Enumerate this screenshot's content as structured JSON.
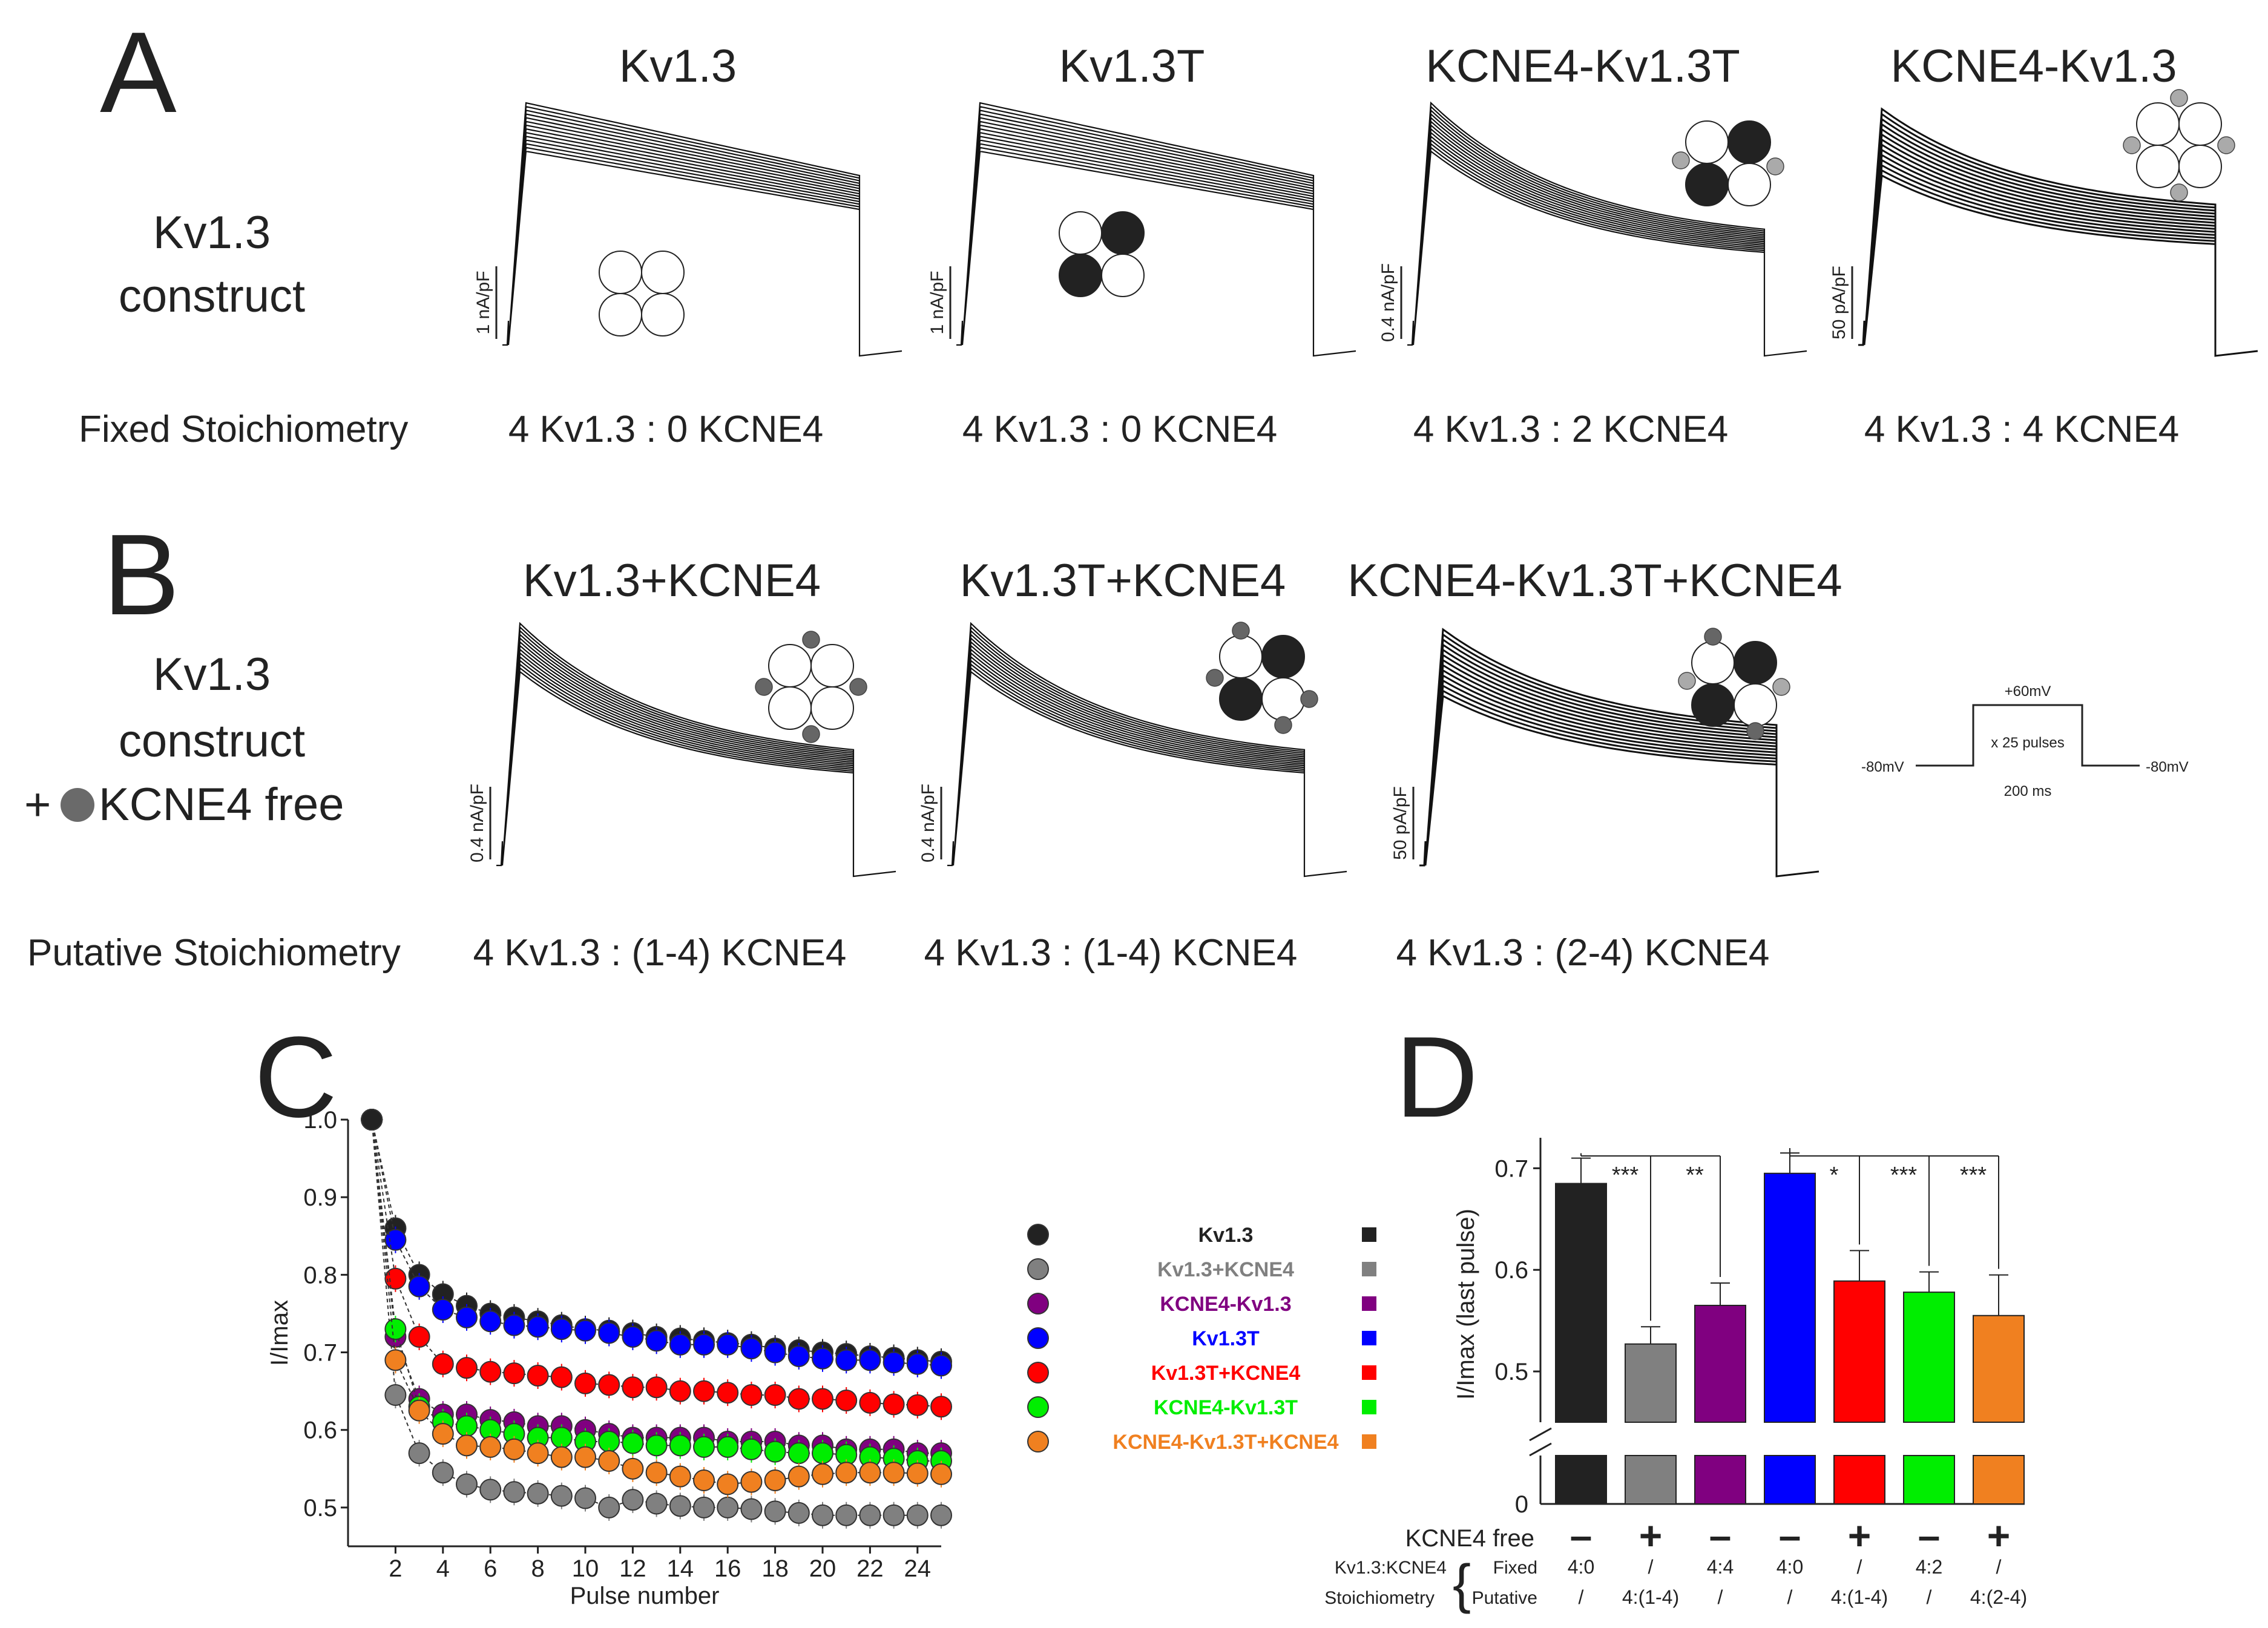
{
  "colors": {
    "Kv1.3": "#222222",
    "Kv1.3+KCNE4": "#808080",
    "KCNE4-Kv1.3": "#800080",
    "Kv1.3T": "#0000ff",
    "Kv1.3T+KCNE4": "#ff0000",
    "KCNE4-Kv1.3T": "#00ee00",
    "KCNE4-Kv1.3T+KCNE4": "#f08020"
  },
  "panelA": {
    "letter": "A",
    "row_label": [
      "Kv1.3",
      "construct"
    ],
    "stoich_label": "Fixed Stoichiometry",
    "traces": [
      {
        "title": "Kv1.3",
        "scale": "1 nA/pF",
        "stoich": "4 Kv1.3 : 0 KCNE4",
        "icon": "tetramer"
      },
      {
        "title": "Kv1.3T",
        "scale": "1 nA/pF",
        "stoich": "4 Kv1.3 : 0 KCNE4",
        "icon": "tandem"
      },
      {
        "title": "KCNE4-Kv1.3T",
        "scale": "0.4 nA/pF",
        "stoich": "4 Kv1.3 : 2 KCNE4",
        "icon": "tandem-2e4"
      },
      {
        "title": "KCNE4-Kv1.3",
        "scale": "50 pA/pF",
        "stoich": "4 Kv1.3 : 4 KCNE4",
        "icon": "tetramer-4e4"
      }
    ]
  },
  "panelB": {
    "letter": "B",
    "row_label": [
      "Kv1.3",
      "construct",
      "+",
      "KCNE4 free"
    ],
    "stoich_label": "Putative Stoichiometry",
    "traces": [
      {
        "title": "Kv1.3+KCNE4",
        "scale": "0.4 nA/pF",
        "stoich": "4 Kv1.3 : (1-4) KCNE4",
        "icon": "tetramer-free"
      },
      {
        "title": "Kv1.3T+KCNE4",
        "scale": "0.4 nA/pF",
        "stoich": "4 Kv1.3 : (1-4) KCNE4",
        "icon": "tandem-free"
      },
      {
        "title": "KCNE4-Kv1.3T+KCNE4",
        "scale": "50 pA/pF",
        "stoich": "4 Kv1.3 : (2-4) KCNE4",
        "icon": "tandem-2e4-free"
      }
    ],
    "protocol": {
      "high": "+60mV",
      "hold_left": "-80mV",
      "hold_right": "-80mV",
      "pulses": "x 25 pulses",
      "duration": "200 ms"
    }
  },
  "chart_data": [
    {
      "panel": "C",
      "type": "scatter",
      "xlabel": "Pulse number",
      "ylabel": "I/Imax",
      "xlim": [
        0,
        25
      ],
      "ylim": [
        0.45,
        1.0
      ],
      "x_ticks": [
        2,
        4,
        6,
        8,
        10,
        12,
        14,
        16,
        18,
        20,
        22,
        24
      ],
      "y_ticks": [
        0.5,
        0.6,
        0.7,
        0.8,
        0.9,
        1.0
      ],
      "legend_position": "right",
      "x": [
        1,
        2,
        3,
        4,
        5,
        6,
        7,
        8,
        9,
        10,
        11,
        12,
        13,
        14,
        15,
        16,
        17,
        18,
        19,
        20,
        21,
        22,
        23,
        24,
        25
      ],
      "series": [
        {
          "name": "Kv1.3",
          "color": "#222222",
          "values": [
            1.0,
            0.86,
            0.8,
            0.775,
            0.76,
            0.75,
            0.745,
            0.74,
            0.735,
            0.73,
            0.728,
            0.725,
            0.72,
            0.718,
            0.715,
            0.712,
            0.71,
            0.705,
            0.703,
            0.7,
            0.698,
            0.695,
            0.693,
            0.69,
            0.688
          ]
        },
        {
          "name": "Kv1.3+KCNE4",
          "color": "#808080",
          "values": [
            1.0,
            0.645,
            0.57,
            0.545,
            0.53,
            0.523,
            0.52,
            0.518,
            0.515,
            0.512,
            0.5,
            0.51,
            0.505,
            0.502,
            0.5,
            0.5,
            0.498,
            0.495,
            0.493,
            0.49,
            0.49,
            0.49,
            0.49,
            0.49,
            0.49
          ]
        },
        {
          "name": "KCNE4-Kv1.3",
          "color": "#800080",
          "values": [
            1.0,
            0.72,
            0.64,
            0.62,
            0.62,
            0.613,
            0.61,
            0.605,
            0.605,
            0.6,
            0.595,
            0.59,
            0.59,
            0.59,
            0.59,
            0.585,
            0.585,
            0.585,
            0.58,
            0.58,
            0.575,
            0.575,
            0.575,
            0.57,
            0.57
          ]
        },
        {
          "name": "Kv1.3T",
          "color": "#0000ff",
          "values": [
            1.0,
            0.845,
            0.785,
            0.755,
            0.745,
            0.74,
            0.735,
            0.733,
            0.73,
            0.728,
            0.725,
            0.72,
            0.715,
            0.71,
            0.71,
            0.71,
            0.705,
            0.7,
            0.695,
            0.692,
            0.69,
            0.69,
            0.687,
            0.685,
            0.683
          ]
        },
        {
          "name": "Kv1.3T+KCNE4",
          "color": "#ff0000",
          "values": [
            1.0,
            0.795,
            0.72,
            0.685,
            0.68,
            0.675,
            0.673,
            0.67,
            0.668,
            0.66,
            0.658,
            0.655,
            0.655,
            0.65,
            0.65,
            0.648,
            0.645,
            0.645,
            0.64,
            0.64,
            0.638,
            0.635,
            0.633,
            0.632,
            0.63
          ]
        },
        {
          "name": "KCNE4-Kv1.3T",
          "color": "#00ee00",
          "values": [
            1.0,
            0.73,
            0.63,
            0.61,
            0.605,
            0.6,
            0.595,
            0.59,
            0.59,
            0.585,
            0.585,
            0.583,
            0.58,
            0.58,
            0.578,
            0.578,
            0.575,
            0.572,
            0.57,
            0.57,
            0.568,
            0.565,
            0.563,
            0.56,
            0.56
          ]
        },
        {
          "name": "KCNE4-Kv1.3T+KCNE4",
          "color": "#f08020",
          "values": [
            1.0,
            0.69,
            0.625,
            0.595,
            0.58,
            0.578,
            0.575,
            0.57,
            0.565,
            0.565,
            0.56,
            0.55,
            0.545,
            0.54,
            0.535,
            0.53,
            0.533,
            0.535,
            0.54,
            0.543,
            0.545,
            0.545,
            0.545,
            0.544,
            0.543
          ]
        }
      ]
    },
    {
      "panel": "D",
      "type": "bar",
      "ylabel": "I/Imax (last pulse)",
      "ylim": [
        0.45,
        0.73
      ],
      "y_ticks": [
        0.5,
        0.6,
        0.7
      ],
      "y_zero_label": "0",
      "categories": [
        "Kv1.3",
        "Kv1.3+KCNE4",
        "KCNE4-Kv1.3",
        "Kv1.3T",
        "Kv1.3T+KCNE4",
        "KCNE4-Kv1.3T",
        "KCNE4-Kv1.3T+KCNE4"
      ],
      "values": [
        0.685,
        0.527,
        0.565,
        0.695,
        0.589,
        0.578,
        0.555
      ],
      "errors": [
        0.025,
        0.017,
        0.022,
        0.02,
        0.03,
        0.02,
        0.04
      ],
      "significance": [
        {
          "from": 0,
          "to": 1,
          "label": "***"
        },
        {
          "from": 0,
          "to": 2,
          "label": "**"
        },
        {
          "from": 3,
          "to": 4,
          "label": "*"
        },
        {
          "from": 3,
          "to": 5,
          "label": "***"
        },
        {
          "from": 3,
          "to": 6,
          "label": "***"
        }
      ],
      "rows": {
        "kcne4_free_label": "KCNE4 free",
        "kcne4_free": [
          "–",
          "+",
          "–",
          "–",
          "+",
          "–",
          "+"
        ],
        "group_label": [
          "Kv1.3:KCNE4",
          "Stoichiometry"
        ],
        "fixed_label": "Fixed",
        "putative_label": "Putative",
        "fixed": [
          "4:0",
          "/",
          "4:4",
          "4:0",
          "/",
          "4:2",
          "/"
        ],
        "putative": [
          "/",
          "4:(1-4)",
          "/",
          "/",
          "4:(1-4)",
          "/",
          "4:(2-4)"
        ]
      }
    }
  ]
}
